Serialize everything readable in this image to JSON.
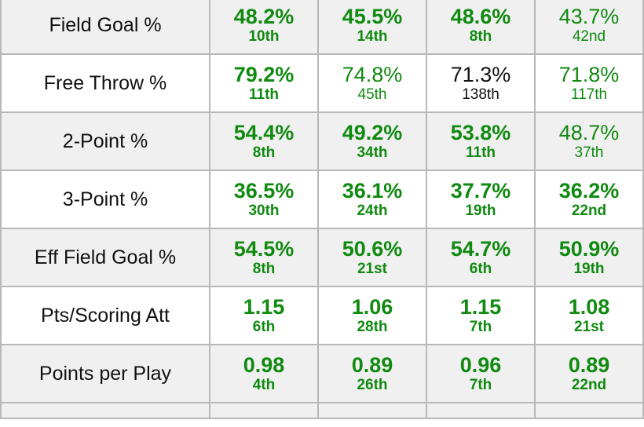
{
  "colors": {
    "good": "#108a10",
    "neutral": "#111111",
    "shaded_row": "#f0f0f0",
    "border": "#b8b8b8"
  },
  "rows": [
    {
      "label": "Field Goal %",
      "cells": [
        {
          "value": "48.2%",
          "rank": "10th",
          "bold": true,
          "color": "green"
        },
        {
          "value": "45.5%",
          "rank": "14th",
          "bold": true,
          "color": "green"
        },
        {
          "value": "48.6%",
          "rank": "8th",
          "bold": true,
          "color": "green"
        },
        {
          "value": "43.7%",
          "rank": "42nd",
          "bold": false,
          "color": "green"
        }
      ]
    },
    {
      "label": "Free Throw %",
      "cells": [
        {
          "value": "79.2%",
          "rank": "11th",
          "bold": true,
          "color": "green"
        },
        {
          "value": "74.8%",
          "rank": "45th",
          "bold": false,
          "color": "green"
        },
        {
          "value": "71.3%",
          "rank": "138th",
          "bold": false,
          "color": "black"
        },
        {
          "value": "71.8%",
          "rank": "117th",
          "bold": false,
          "color": "green"
        }
      ]
    },
    {
      "label": "2-Point %",
      "cells": [
        {
          "value": "54.4%",
          "rank": "8th",
          "bold": true,
          "color": "green"
        },
        {
          "value": "49.2%",
          "rank": "34th",
          "bold": true,
          "color": "green"
        },
        {
          "value": "53.8%",
          "rank": "11th",
          "bold": true,
          "color": "green"
        },
        {
          "value": "48.7%",
          "rank": "37th",
          "bold": false,
          "color": "green"
        }
      ]
    },
    {
      "label": "3-Point %",
      "cells": [
        {
          "value": "36.5%",
          "rank": "30th",
          "bold": true,
          "color": "green"
        },
        {
          "value": "36.1%",
          "rank": "24th",
          "bold": true,
          "color": "green"
        },
        {
          "value": "37.7%",
          "rank": "19th",
          "bold": true,
          "color": "green"
        },
        {
          "value": "36.2%",
          "rank": "22nd",
          "bold": true,
          "color": "green"
        }
      ]
    },
    {
      "label": "Eff Field Goal %",
      "cells": [
        {
          "value": "54.5%",
          "rank": "8th",
          "bold": true,
          "color": "green"
        },
        {
          "value": "50.6%",
          "rank": "21st",
          "bold": true,
          "color": "green"
        },
        {
          "value": "54.7%",
          "rank": "6th",
          "bold": true,
          "color": "green"
        },
        {
          "value": "50.9%",
          "rank": "19th",
          "bold": true,
          "color": "green"
        }
      ]
    },
    {
      "label": "Pts/Scoring Att",
      "cells": [
        {
          "value": "1.15",
          "rank": "6th",
          "bold": true,
          "color": "green"
        },
        {
          "value": "1.06",
          "rank": "28th",
          "bold": true,
          "color": "green"
        },
        {
          "value": "1.15",
          "rank": "7th",
          "bold": true,
          "color": "green"
        },
        {
          "value": "1.08",
          "rank": "21st",
          "bold": true,
          "color": "green"
        }
      ]
    },
    {
      "label": "Points per Play",
      "cells": [
        {
          "value": "0.98",
          "rank": "4th",
          "bold": true,
          "color": "green"
        },
        {
          "value": "0.89",
          "rank": "26th",
          "bold": true,
          "color": "green"
        },
        {
          "value": "0.96",
          "rank": "7th",
          "bold": true,
          "color": "green"
        },
        {
          "value": "0.89",
          "rank": "22nd",
          "bold": true,
          "color": "green"
        }
      ]
    }
  ]
}
